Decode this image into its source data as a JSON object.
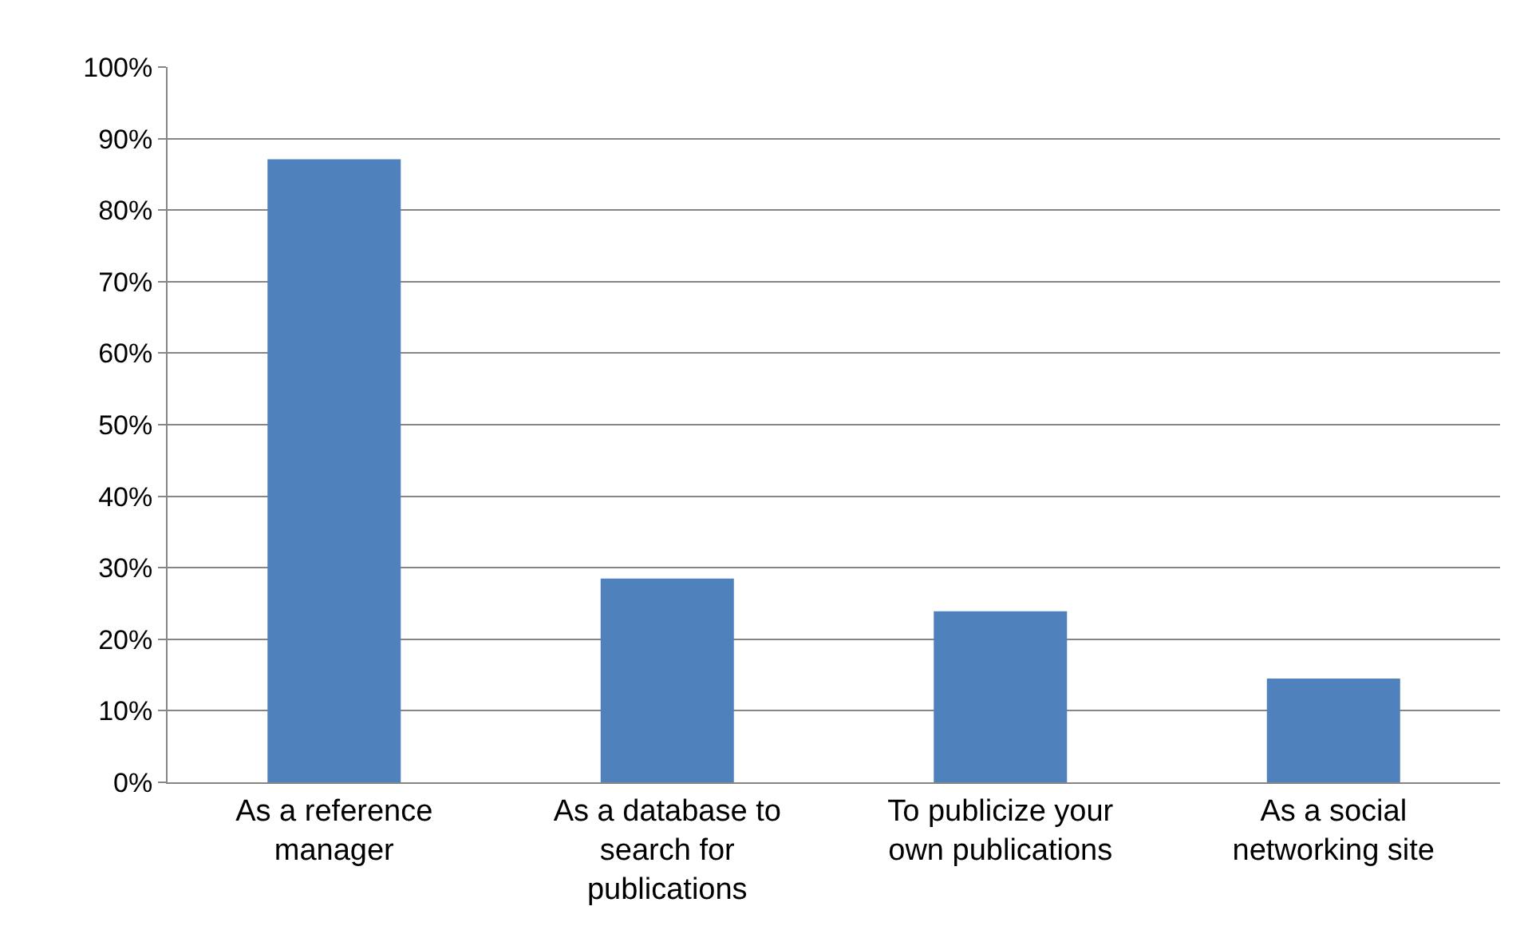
{
  "chart_data": {
    "type": "bar",
    "categories": [
      "As a reference manager",
      "As a database to search for publications",
      "To publicize your own publications",
      "As a social networking site"
    ],
    "values": [
      87.1,
      28.5,
      23.9,
      14.5
    ],
    "color": "#4f81bd",
    "ylim": [
      0,
      100
    ],
    "yticks": [
      {
        "value": 0,
        "label": "0%"
      },
      {
        "value": 10,
        "label": "10%"
      },
      {
        "value": 20,
        "label": "20%"
      },
      {
        "value": 30,
        "label": "30%"
      },
      {
        "value": 40,
        "label": "40%"
      },
      {
        "value": 50,
        "label": "50%"
      },
      {
        "value": 60,
        "label": "60%"
      },
      {
        "value": 70,
        "label": "70%"
      },
      {
        "value": 80,
        "label": "80%"
      },
      {
        "value": 90,
        "label": "90%"
      },
      {
        "value": 100,
        "label": "100%"
      }
    ],
    "grid": "y"
  }
}
